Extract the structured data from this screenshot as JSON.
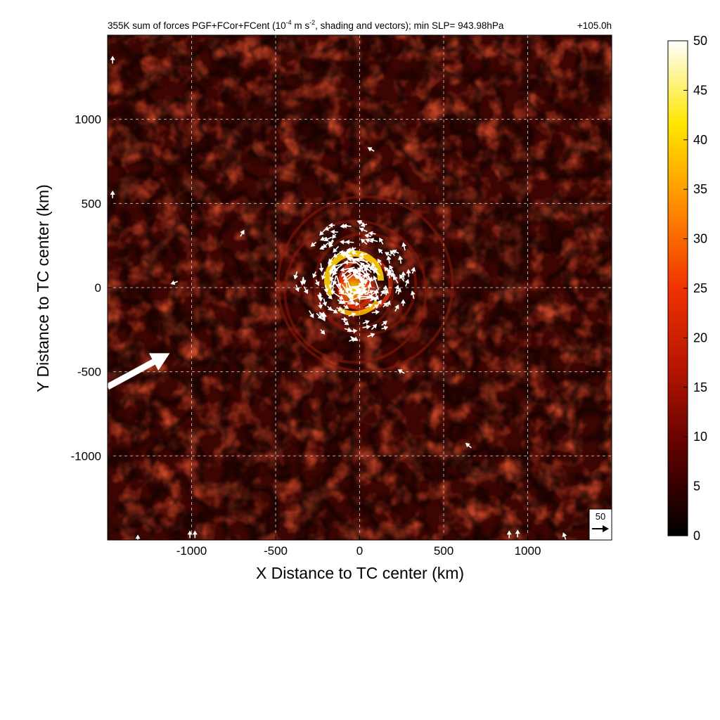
{
  "chart_data": {
    "type": "heatmap",
    "title": {
      "prefix": "355K sum of forces PGF+FCor+FCent (10",
      "exp1": "-4",
      "mid": " m s",
      "exp2": "-2",
      "suffix": ", shading and vectors); min SLP= 943.98hPa",
      "time": "+105.0h"
    },
    "xlabel": "X Distance to TC center (km)",
    "ylabel": "Y Distance to TC center (km)",
    "xlim": [
      -1500,
      1500
    ],
    "ylim": [
      -1500,
      1500
    ],
    "x_ticks": [
      -1000,
      -500,
      0,
      500,
      1000
    ],
    "y_ticks": [
      -1000,
      -500,
      0,
      500,
      1000
    ],
    "x_tick_labels": [
      "-1000",
      "-500",
      "0",
      "500",
      "1000"
    ],
    "y_tick_labels": [
      "-1000",
      "-500",
      "0",
      "500",
      "1000"
    ],
    "grid": true,
    "colorbar": {
      "min": 0,
      "max": 50,
      "ticks": [
        0,
        5,
        10,
        15,
        20,
        25,
        30,
        35,
        40,
        45,
        50
      ],
      "tick_labels": [
        "0",
        "5",
        "10",
        "15",
        "20",
        "25",
        "30",
        "35",
        "40",
        "45",
        "50"
      ],
      "colors": [
        "#000000",
        "#5a0000",
        "#b41400",
        "#f03200",
        "#ff8c00",
        "#ffe600",
        "#ffffff"
      ]
    },
    "reference_vector": {
      "label": "50",
      "magnitude": 50
    },
    "features": {
      "center": [
        0,
        0
      ],
      "core_radius_km": 200,
      "ring_radii_km": [
        90,
        150,
        220,
        300,
        420,
        520
      ],
      "large_vector": {
        "x0": -1500,
        "y0": -590,
        "x1": -1130,
        "y1": -390
      }
    }
  }
}
